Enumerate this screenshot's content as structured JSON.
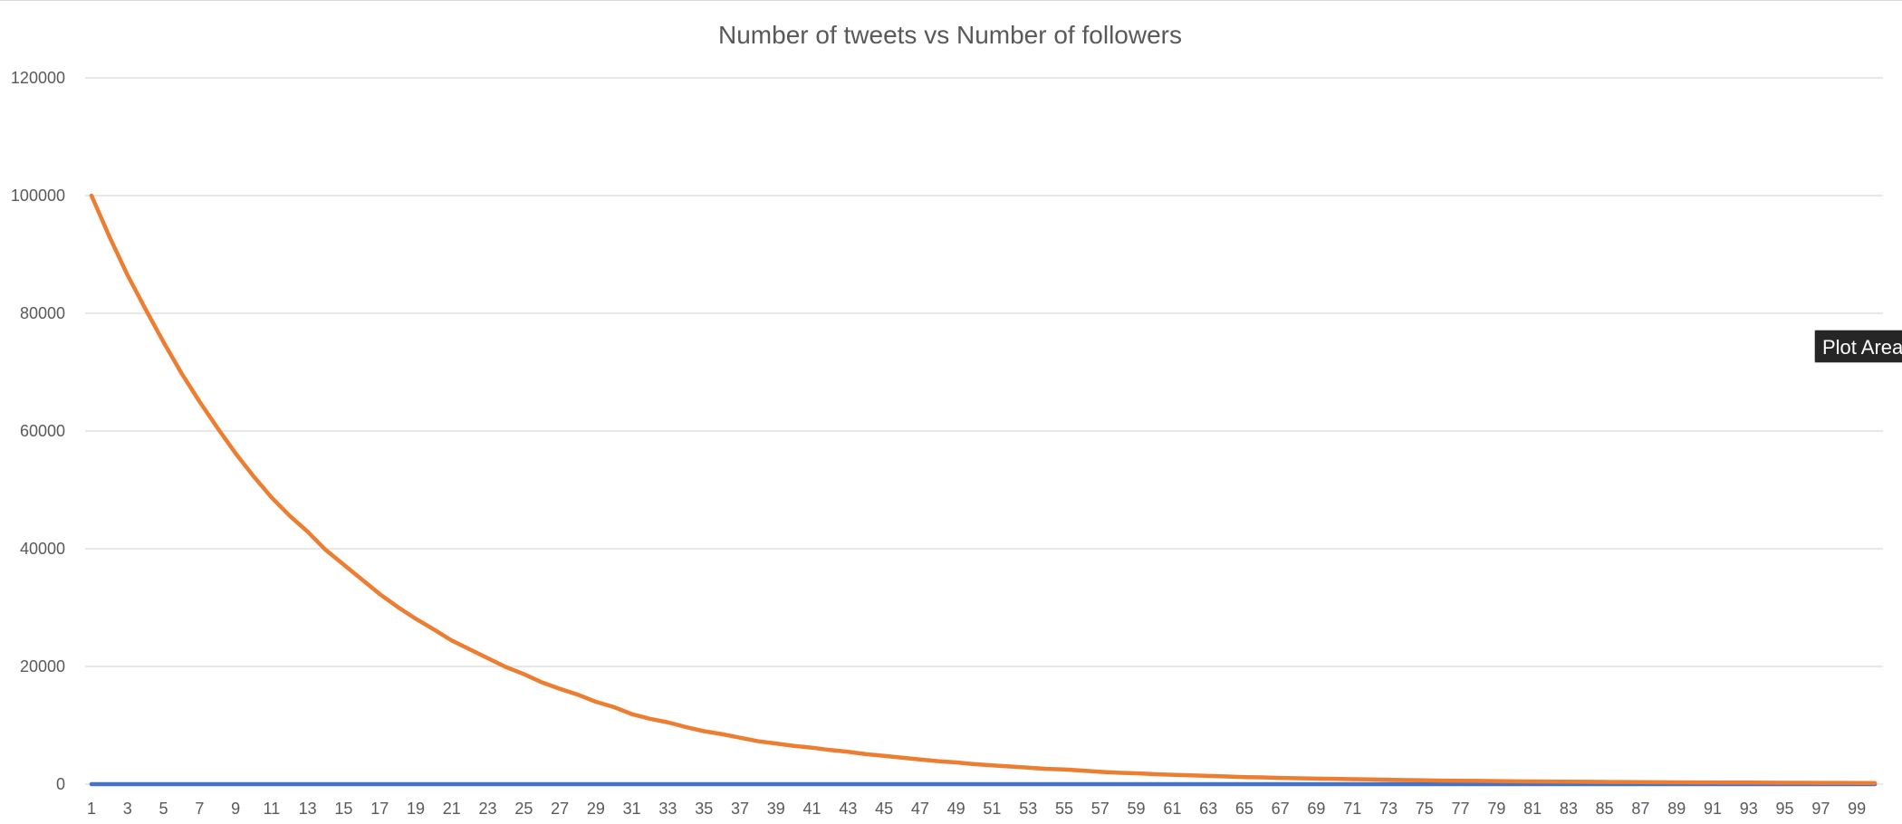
{
  "chart_data": {
    "type": "line",
    "title": "Number of tweets vs Number of followers",
    "xlabel": "",
    "ylabel": "",
    "ylim": [
      0,
      120000
    ],
    "yticks": [
      0,
      20000,
      40000,
      60000,
      80000,
      100000,
      120000
    ],
    "ytick_labels": [
      "0",
      "20000",
      "40000",
      "60000",
      "80000",
      "100000",
      "120000"
    ],
    "x_start": 1,
    "x_end": 100,
    "xtick_step": 2,
    "grid": true,
    "legend": "none",
    "series": [
      {
        "color": "#4472C4",
        "values": [
          0,
          0,
          0,
          0,
          0,
          0,
          0,
          0,
          0,
          0,
          0,
          0,
          0,
          0,
          0,
          0,
          0,
          0,
          0,
          0,
          0,
          0,
          0,
          0,
          0,
          0,
          0,
          0,
          0,
          0,
          0,
          0,
          0,
          0,
          0,
          0,
          0,
          0,
          0,
          0,
          0,
          0,
          0,
          0,
          0,
          0,
          0,
          0,
          0,
          0,
          0,
          0,
          0,
          0,
          0,
          0,
          0,
          0,
          0,
          0,
          0,
          0,
          0,
          0,
          0,
          0,
          0,
          0,
          0,
          0,
          0,
          0,
          0,
          0,
          0,
          0,
          0,
          0,
          0,
          0,
          0,
          0,
          0,
          0,
          0,
          0,
          0,
          0,
          0,
          0,
          0,
          0,
          0,
          0,
          0,
          0,
          0,
          0,
          0,
          0
        ]
      },
      {
        "color": "#ED7D31",
        "values": [
          100000,
          93000,
          86500,
          80700,
          75100,
          69800,
          65000,
          60500,
          56200,
          52300,
          48700,
          45600,
          42900,
          39800,
          37300,
          34800,
          32300,
          30100,
          28100,
          26300,
          24400,
          22900,
          21400,
          19900,
          18700,
          17300,
          16200,
          15200,
          14000,
          13100,
          11900,
          11100,
          10500,
          9700,
          9000,
          8500,
          7900,
          7300,
          6900,
          6500,
          6200,
          5800,
          5500,
          5100,
          4800,
          4500,
          4200,
          3900,
          3700,
          3400,
          3200,
          3000,
          2800,
          2600,
          2500,
          2300,
          2100,
          1950,
          1850,
          1700,
          1600,
          1500,
          1400,
          1300,
          1200,
          1150,
          1050,
          1000,
          950,
          900,
          850,
          800,
          750,
          700,
          650,
          600,
          580,
          550,
          520,
          480,
          460,
          440,
          420,
          400,
          380,
          360,
          340,
          320,
          300,
          290,
          280,
          270,
          260,
          250,
          240,
          230,
          220,
          210,
          200,
          190
        ]
      }
    ]
  },
  "overlay": {
    "tooltip_text": "Plot Area"
  }
}
